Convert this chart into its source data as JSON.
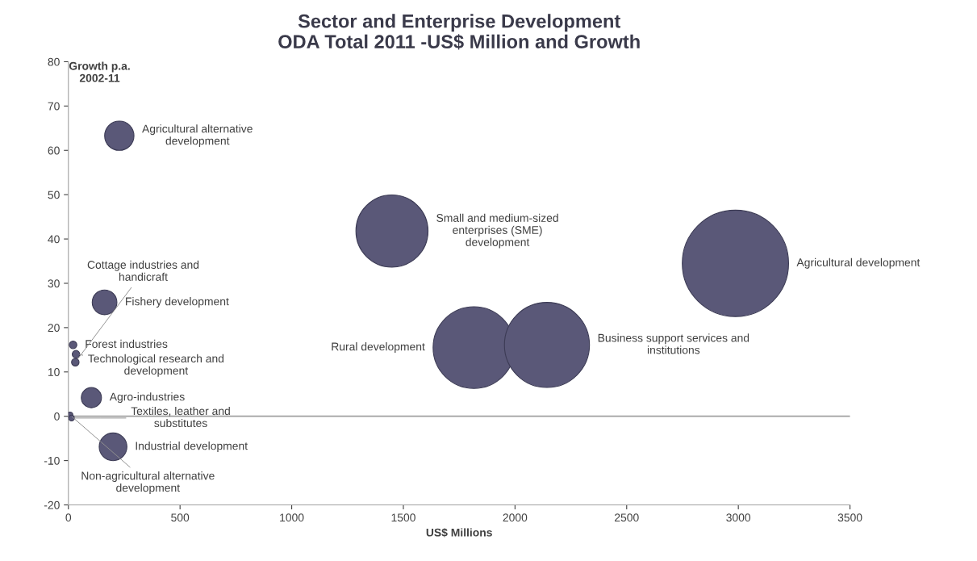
{
  "chart_data": {
    "type": "bubble",
    "title": "Sector and Enterprise Development\nODA Total 2011 -US$ Million and Growth",
    "xlabel": "US$ Millions",
    "ylabel": "Growth p.a.\n2002-11",
    "series": [
      {
        "name": "Agricultural alternative\ndevelopment",
        "color": "#5a5878",
        "x": [
          228
        ],
        "values": [
          63.3
        ],
        "sizes": [
          0.076
        ]
      },
      {
        "name": "Fishery development",
        "color": "#5a5878",
        "x": [
          162
        ],
        "values": [
          25.7
        ],
        "sizes": [
          0.054
        ]
      },
      {
        "name": "Small and medium-sized\nenterprises (SME)\ndevelopment",
        "color": "#5a5878",
        "x": [
          1449
        ],
        "values": [
          41.8
        ],
        "sizes": [
          0.46
        ]
      },
      {
        "name": "Agricultural development",
        "color": "#5a5878",
        "x": [
          2987
        ],
        "values": [
          34.5
        ],
        "sizes": [
          1
        ]
      },
      {
        "name": "Rural development",
        "color": "#5a5878",
        "x": [
          1816
        ],
        "values": [
          15.5
        ],
        "sizes": [
          0.59
        ]
      },
      {
        "name": "Business support services and\ninstitutions",
        "color": "#5a5878",
        "x": [
          2143
        ],
        "values": [
          16.1
        ],
        "sizes": [
          0.64
        ]
      },
      {
        "name": "Forest industries",
        "color": "#5a5878",
        "x": [
          21
        ],
        "values": [
          16.1
        ],
        "sizes": [
          0.005
        ]
      },
      {
        "name": "Technological research and\ndevelopment",
        "color": "#5a5878",
        "x": [
          34
        ],
        "values": [
          14.0
        ],
        "sizes": [
          0.005
        ]
      },
      {
        "name": "Cottage industries and\nhandicraft",
        "color": "#5a5878",
        "x": [
          31
        ],
        "values": [
          12.2
        ],
        "sizes": [
          0.005
        ]
      },
      {
        "name": "Agro-industries",
        "color": "#5a5878",
        "x": [
          103
        ],
        "values": [
          4.2
        ],
        "sizes": [
          0.036
        ]
      },
      {
        "name": "Non-agricultural alternative\ndevelopment",
        "color": "#5a5878",
        "x": [
          7
        ],
        "values": [
          0.3
        ],
        "sizes": [
          0.003
        ]
      },
      {
        "name": "Textiles, leather and\nsubstitutes",
        "color": "#5a5878",
        "x": [
          14
        ],
        "values": [
          -0.4
        ],
        "sizes": [
          0.003
        ]
      },
      {
        "name": "Industrial development",
        "color": "#5a5878",
        "x": [
          200
        ],
        "values": [
          -6.9
        ],
        "sizes": [
          0.068
        ]
      }
    ],
    "xlim": [
      0,
      3500
    ],
    "xticks": [
      0,
      500,
      1000,
      1500,
      2000,
      2500,
      3000,
      3500
    ],
    "ylim": [
      -20,
      80
    ],
    "yticks": [
      -20,
      -10,
      0,
      10,
      20,
      30,
      40,
      50,
      60,
      70,
      80
    ],
    "ref_lines": [
      {
        "axis": "y",
        "value": 0,
        "color": "#a0a0a0"
      }
    ],
    "grid": false
  }
}
